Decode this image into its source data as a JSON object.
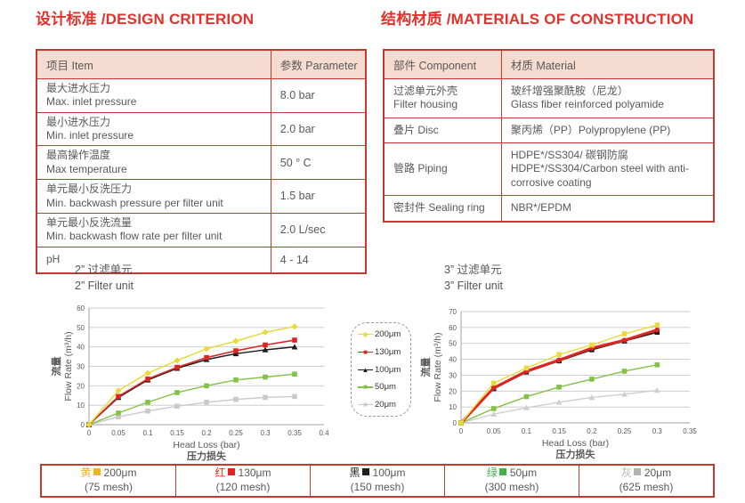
{
  "page": {
    "heading_left": "设计标准 /DESIGN CRITERION",
    "heading_right": "结构材质 /MATERIALS OF CONSTRUCTION",
    "accent_red": "#e2312a",
    "border_red": "#c23a30",
    "header_fill": "#f6dcd0"
  },
  "design_table": {
    "headers": [
      "项目 Item",
      "参数 Parameter"
    ],
    "rows": [
      {
        "item_zh": "最大进水压力",
        "item_en": "Max. inlet pressure",
        "value": "8.0 bar"
      },
      {
        "item_zh": "最小进水压力",
        "item_en": "Min. inlet pressure",
        "value": "2.0 bar"
      },
      {
        "item_zh": "最高操作温度",
        "item_en": "Max temperature",
        "value": "50 ° C"
      },
      {
        "item_zh": "单元最小反洗压力",
        "item_en": "Min. backwash pressure per filter unit",
        "value": "1.5 bar"
      },
      {
        "item_zh": "单元最小反洗流量",
        "item_en": "Min. backwash flow rate per filter unit",
        "value": "2.0 L/sec"
      },
      {
        "item_zh": "pH",
        "item_en": "",
        "value": "4 - 14"
      }
    ]
  },
  "materials_table": {
    "headers": [
      "部件 Component",
      "材质 Material"
    ],
    "rows": [
      {
        "component_zh": "过滤单元外壳",
        "component_en": "Filter housing",
        "material_zh": "玻纤增强聚酰胺（尼龙）",
        "material_en": "Glass fiber reinforced polyamide"
      },
      {
        "component_zh": "叠片 Disc",
        "component_en": "",
        "material_zh": "聚丙烯（PP）Polypropylene (PP)",
        "material_en": ""
      },
      {
        "component_zh": "管路 Piping",
        "component_en": "",
        "material_zh": "HDPE*/SS304/ 碳钢防腐",
        "material_en": "HDPE*/SS304/Carbon steel with anti-corrosive coating"
      },
      {
        "component_zh": "密封件 Sealing ring",
        "component_en": "",
        "material_zh": "NBR*/EPDM",
        "material_en": ""
      }
    ]
  },
  "chart_data": [
    {
      "type": "line",
      "title_zh": "2”  过滤单元",
      "title_en": "2”  Filter unit",
      "xlabel_en": "Head Loss (bar)",
      "xlabel_zh": "压力损失",
      "ylabel_zh": "流量",
      "ylabel_en": "Flow Rate (m³/h)",
      "xlim": [
        0,
        0.4
      ],
      "ylim": [
        0,
        60
      ],
      "ystep": 10,
      "xticks": [
        "0",
        "0.05",
        "0.1",
        "0.15",
        "0.2",
        "0.25",
        "0.3",
        "0.35",
        "0.4"
      ],
      "x": [
        0,
        0.05,
        0.1,
        0.15,
        0.2,
        0.25,
        0.3,
        0.35
      ],
      "grid": true,
      "legend_position": "right-outside",
      "series": [
        {
          "name": "200μm",
          "color": "#e7da3a",
          "marker": "diamond",
          "width": 1.5,
          "values": [
            0,
            17.5,
            26.5,
            33,
            39,
            43,
            47.5,
            50.5
          ]
        },
        {
          "name": "130μm",
          "color": "#df2522",
          "marker": "square",
          "width": 1.6,
          "values": [
            0,
            14.5,
            23.5,
            29.5,
            34.5,
            38,
            41,
            43.5
          ]
        },
        {
          "name": "100μm",
          "color": "#1c1c1c",
          "marker": "triangle",
          "width": 1.5,
          "values": [
            0,
            14,
            23,
            29,
            33.5,
            36.5,
            38.5,
            40
          ]
        },
        {
          "name": "50μm",
          "color": "#82c346",
          "marker": "square",
          "width": 1.4,
          "values": [
            0,
            6,
            11.5,
            16.5,
            20,
            23,
            24.5,
            26
          ]
        },
        {
          "name": "20μm",
          "color": "#c9c9c9",
          "marker": "square",
          "width": 1.4,
          "values": [
            0,
            4,
            7,
            9.5,
            11.5,
            13,
            14,
            14.5
          ]
        }
      ]
    },
    {
      "type": "line",
      "title_zh": "3”  过滤单元",
      "title_en": "3”  Filter unit",
      "xlabel_en": "Head Loss (bar)",
      "xlabel_zh": "压力损失",
      "ylabel_zh": "流量",
      "ylabel_en": "Flow Rate (m³/h)",
      "xlim": [
        0,
        0.35
      ],
      "ylim": [
        0,
        70
      ],
      "ystep": 10,
      "xticks": [
        "0",
        "0.05",
        "0.1",
        "0.15",
        "0.2",
        "0.25",
        "0.3",
        "0.35"
      ],
      "x": [
        0,
        0.05,
        0.1,
        0.15,
        0.2,
        0.25,
        0.3
      ],
      "grid": true,
      "series": [
        {
          "name": "200μm",
          "color": "#e7da3a",
          "marker": "square",
          "width": 1.4,
          "values": [
            0,
            25,
            34.5,
            43,
            49,
            56,
            61.5
          ]
        },
        {
          "name": "130μm",
          "color": "#df2522",
          "marker": "circle",
          "width": 3,
          "values": [
            0,
            22,
            32.5,
            39.5,
            47,
            52,
            58.5
          ]
        },
        {
          "name": "100μm",
          "color": "#1c1c1c",
          "marker": "square",
          "width": 1.6,
          "values": [
            0,
            21.5,
            32,
            39,
            46,
            51.5,
            57
          ]
        },
        {
          "name": "50μm",
          "color": "#82c346",
          "marker": "square",
          "width": 1.4,
          "values": [
            0,
            9,
            16.5,
            22.5,
            27.5,
            32.5,
            36.5
          ]
        },
        {
          "name": "20μm",
          "color": "#cfcfcf",
          "marker": "triangle",
          "width": 1.4,
          "values": [
            0,
            5.5,
            9.5,
            13,
            16,
            18,
            20.5
          ]
        }
      ]
    }
  ],
  "mid_legend": {
    "entries": [
      {
        "label": "200μm",
        "color": "#e7da3a",
        "marker": "diamond"
      },
      {
        "label": "130μm",
        "color": "#df2522",
        "marker": "square"
      },
      {
        "label": "100μm",
        "color": "#1c1c1c",
        "marker": "triangle"
      },
      {
        "label": "50μm",
        "color": "#82c346",
        "marker": "square"
      },
      {
        "label": "20μm",
        "color": "#c9c9c9",
        "marker": "square"
      }
    ]
  },
  "bottom_bar": {
    "cells": [
      {
        "char": "黄",
        "color": "#eeb421",
        "label": "200μm",
        "mesh": "(75 mesh)"
      },
      {
        "char": "红",
        "color": "#df2522",
        "label": "130μm",
        "mesh": "(120 mesh)"
      },
      {
        "char": "黑",
        "color": "#1f1f1f",
        "label": "100μm",
        "mesh": "(150 mesh)"
      },
      {
        "char": "绿",
        "color": "#44b04a",
        "label": "50μm",
        "mesh": "(300 mesh)"
      },
      {
        "char": "灰",
        "color": "#b3b3b3",
        "label": "20μm",
        "mesh": "(625 mesh)"
      }
    ]
  }
}
